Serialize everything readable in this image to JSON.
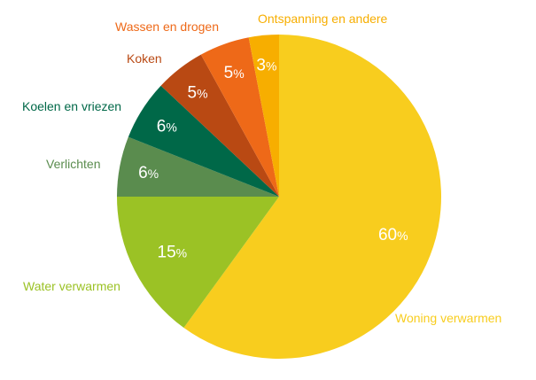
{
  "chart_data": {
    "type": "pie",
    "title": "",
    "start": "top",
    "direction": "clockwise",
    "slices": [
      {
        "label": "Woning verwarmen",
        "value": 60,
        "color": "#F8CD1E"
      },
      {
        "label": "Water verwarmen",
        "value": 15,
        "color": "#9BC225"
      },
      {
        "label": "Verlichten",
        "value": 6,
        "color": "#5A8C4E"
      },
      {
        "label": "Koelen en vriezen",
        "value": 6,
        "color": "#006848"
      },
      {
        "label": "Koken",
        "value": 5,
        "color": "#B94913"
      },
      {
        "label": "Wassen en drogen",
        "value": 5,
        "color": "#EE6918"
      },
      {
        "label": "Ontspanning en andere",
        "value": 3,
        "color": "#F7AE00"
      }
    ]
  }
}
